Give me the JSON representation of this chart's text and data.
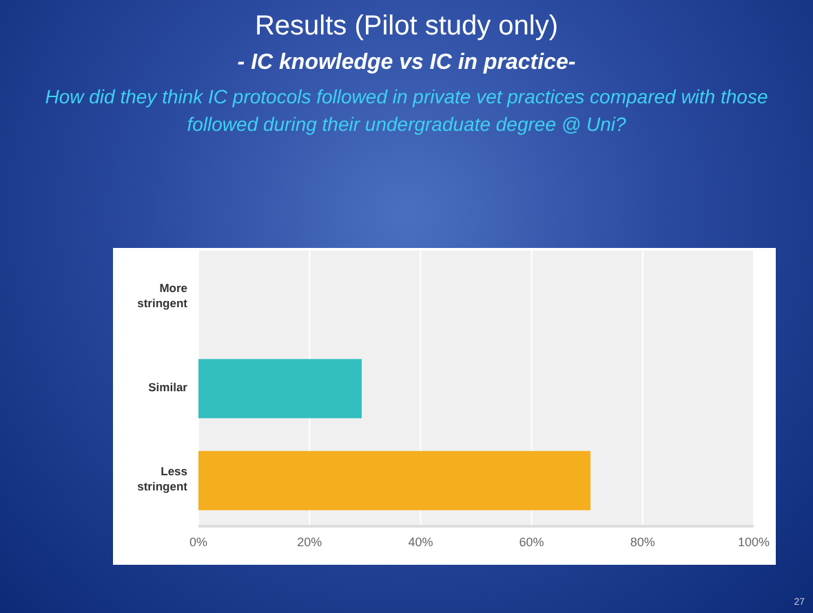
{
  "chart_data": {
    "type": "bar",
    "orientation": "horizontal",
    "title": "Results (Pilot study only)",
    "subtitle": "- IC knowledge vs IC in practice-",
    "annotations": [
      "How did they think IC protocols followed in private vet practices compared with those followed during their undergraduate degree @ Uni?",
      "27"
    ],
    "categories": [
      "More stringent",
      "Similar",
      "Less stringent"
    ],
    "values": [
      0,
      29.4,
      70.6
    ],
    "colors": [
      "#33bfbf",
      "#33bfbf",
      "#f5ae1e"
    ],
    "xlim": [
      0,
      100
    ],
    "xticks": [
      {
        "value": 0,
        "label": "0%"
      },
      {
        "value": 20,
        "label": "20%"
      },
      {
        "value": 40,
        "label": "40%"
      },
      {
        "value": 60,
        "label": "60%"
      },
      {
        "value": 80,
        "label": "80%"
      },
      {
        "value": 100,
        "label": "100%"
      }
    ],
    "grid": "x",
    "legend": false
  }
}
